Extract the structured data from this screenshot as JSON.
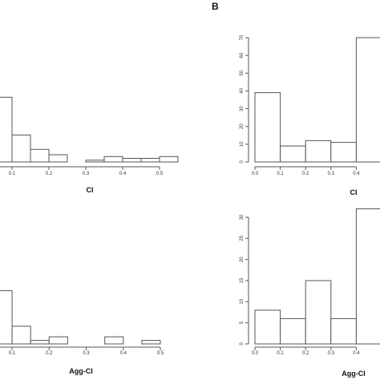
{
  "panel_labels": {
    "b": "B"
  },
  "chart_data": [
    {
      "type": "bar",
      "panel": "A-top",
      "xlabel": "CI",
      "x_ticks": [
        "0.1",
        "0.2",
        "0.3",
        "0.4",
        "0.5"
      ],
      "bins": [
        [
          0.05,
          0.1
        ],
        [
          0.1,
          0.15
        ],
        [
          0.15,
          0.2
        ],
        [
          0.2,
          0.25
        ],
        [
          0.25,
          0.3
        ],
        [
          0.3,
          0.35
        ],
        [
          0.35,
          0.4
        ],
        [
          0.4,
          0.45
        ],
        [
          0.45,
          0.5
        ],
        [
          0.5,
          0.55
        ]
      ],
      "values": [
        36,
        15,
        7,
        4,
        0,
        1,
        3,
        2,
        2,
        3
      ],
      "ylim": [
        0,
        70
      ],
      "xlim": [
        0.05,
        0.55
      ]
    },
    {
      "type": "bar",
      "panel": "B-top",
      "xlabel": "CI",
      "y_ticks": [
        "0",
        "10",
        "20",
        "30",
        "40",
        "50",
        "60",
        "70"
      ],
      "x_ticks": [
        "0.0",
        "0.1",
        "0.2",
        "0.3",
        "0.4"
      ],
      "bins": [
        [
          0,
          0.1
        ],
        [
          0.1,
          0.2
        ],
        [
          0.2,
          0.3
        ],
        [
          0.3,
          0.4
        ],
        [
          0.4,
          0.5
        ]
      ],
      "values": [
        39,
        9,
        12,
        11,
        70
      ],
      "ylim": [
        0,
        70
      ],
      "xlim": [
        0,
        0.5
      ]
    },
    {
      "type": "bar",
      "panel": "A-bottom",
      "xlabel": "Agg-CI",
      "x_ticks": [
        "0.1",
        "0.2",
        "0.3",
        "0.4",
        "0.5"
      ],
      "bins": [
        [
          0.05,
          0.1
        ],
        [
          0.1,
          0.15
        ],
        [
          0.15,
          0.2
        ],
        [
          0.2,
          0.25
        ],
        [
          0.25,
          0.3
        ],
        [
          0.3,
          0.35
        ],
        [
          0.35,
          0.4
        ],
        [
          0.4,
          0.45
        ],
        [
          0.45,
          0.5
        ]
      ],
      "values": [
        30,
        10,
        2,
        4,
        0,
        0,
        4,
        0,
        2
      ],
      "ylim": [
        0,
        70
      ],
      "xlim": [
        0.05,
        0.5
      ]
    },
    {
      "type": "bar",
      "panel": "B-bottom",
      "xlabel": "Agg-CI",
      "y_ticks": [
        "0",
        "5",
        "10",
        "15",
        "20",
        "25",
        "30"
      ],
      "x_ticks": [
        "0.0",
        "0.1",
        "0.2",
        "0.3",
        "0.4"
      ],
      "bins": [
        [
          0,
          0.1
        ],
        [
          0.1,
          0.2
        ],
        [
          0.2,
          0.3
        ],
        [
          0.3,
          0.4
        ],
        [
          0.4,
          0.5
        ]
      ],
      "values": [
        8,
        6,
        15,
        6,
        32
      ],
      "ylim": [
        0,
        30
      ],
      "xlim": [
        0,
        0.5
      ]
    }
  ]
}
